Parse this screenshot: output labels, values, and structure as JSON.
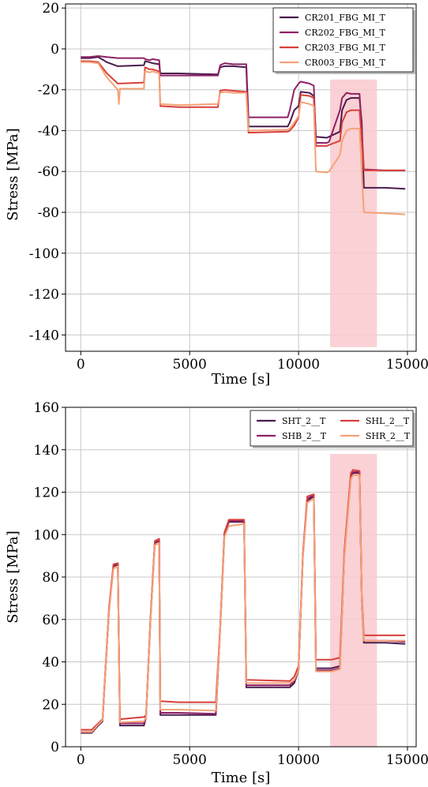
{
  "colors": {
    "dark_purple": "#4b1b4d",
    "magenta": "#8e2167",
    "red": "#d7403b",
    "salmon": "#f5a277",
    "highlight": "#f9c9cc"
  },
  "chart_data": [
    {
      "type": "line",
      "xlabel": "Time [s]",
      "ylabel": "Stress [MPa]",
      "xlim": [
        -700,
        15400
      ],
      "ylim": [
        -148,
        22
      ],
      "xticks": [
        0,
        5000,
        10000,
        15000
      ],
      "yticks": [
        20,
        0,
        -20,
        -40,
        -60,
        -80,
        -100,
        -120,
        -140
      ],
      "grid": true,
      "legend": "top-right",
      "legend_columns": 1,
      "highlight": {
        "x": [
          11450,
          13600
        ],
        "y": [
          -146,
          -15
        ]
      },
      "series": [
        {
          "name": "CR201_FBG_MI_T",
          "color": "#4b1b4d",
          "x": [
            0,
            400,
            800,
            1200,
            1700,
            2900,
            2950,
            3150,
            3300,
            3600,
            3650,
            4500,
            6300,
            6400,
            6600,
            7000,
            7600,
            7700,
            9500,
            9600,
            9800,
            10000,
            10100,
            10500,
            10700,
            10800,
            11300,
            11400,
            11900,
            12000,
            12200,
            12400,
            12800,
            12900,
            13000,
            14000,
            14900
          ],
          "y": [
            -4.5,
            -4.5,
            -4,
            -6.5,
            -8.5,
            -8,
            -6,
            -6.5,
            -7,
            -7.5,
            -12,
            -12,
            -12.5,
            -9,
            -8.5,
            -8.5,
            -9,
            -38,
            -38,
            -36,
            -30,
            -28,
            -21,
            -21.5,
            -23,
            -43,
            -43.5,
            -43,
            -40.5,
            -30,
            -25,
            -24,
            -24,
            -36,
            -68,
            -68,
            -68.5
          ]
        },
        {
          "name": "CR202_FBG_MI_T",
          "color": "#8e2167",
          "x": [
            0,
            400,
            800,
            1200,
            1700,
            2900,
            2950,
            3150,
            3300,
            3600,
            3650,
            4500,
            6300,
            6400,
            6600,
            7000,
            7600,
            7700,
            9500,
            9600,
            9800,
            10000,
            10100,
            10500,
            10700,
            10800,
            11300,
            11400,
            11900,
            12000,
            12200,
            12400,
            12800,
            12900,
            13000,
            14000,
            14900
          ],
          "y": [
            -4,
            -4,
            -3.5,
            -4,
            -4.5,
            -4.5,
            -5,
            -5.5,
            -5,
            -5.5,
            -13,
            -13,
            -13,
            -8,
            -7,
            -7.5,
            -7.5,
            -33.5,
            -33.5,
            -30,
            -20,
            -17,
            -16,
            -17,
            -18,
            -46,
            -46,
            -45.5,
            -30,
            -24,
            -21.5,
            -22,
            -22,
            -40,
            -59,
            -59.5,
            -59.5
          ]
        },
        {
          "name": "CR203_FBG_MI_T",
          "color": "#d7403b",
          "x": [
            0,
            400,
            800,
            1200,
            1700,
            2900,
            2950,
            3150,
            3300,
            3600,
            3650,
            4500,
            6300,
            6400,
            6600,
            7000,
            7600,
            7700,
            9500,
            9600,
            9800,
            10000,
            10100,
            10500,
            10700,
            10800,
            11300,
            11400,
            11900,
            12000,
            12200,
            12400,
            12800,
            12900,
            13000,
            14000,
            14900
          ],
          "y": [
            -6,
            -6,
            -6.5,
            -12,
            -17,
            -16.5,
            -9,
            -10,
            -10,
            -11,
            -28,
            -28.5,
            -28.5,
            -20.5,
            -20,
            -20.5,
            -21,
            -41,
            -40.5,
            -40,
            -37.5,
            -33.5,
            -22.5,
            -23,
            -24,
            -47.5,
            -47.5,
            -47,
            -45,
            -36,
            -31,
            -30,
            -30,
            -45,
            -59.5,
            -59.5,
            -59.5
          ]
        },
        {
          "name": "CR003_FBG_MI_T",
          "color": "#f5a277",
          "x": [
            0,
            400,
            800,
            1200,
            1700,
            1750,
            1800,
            2900,
            2950,
            3150,
            3300,
            3600,
            3650,
            4500,
            6300,
            6400,
            6600,
            7000,
            7600,
            7700,
            9500,
            9600,
            9800,
            10000,
            10100,
            10500,
            10700,
            10800,
            11300,
            11400,
            11900,
            12000,
            12200,
            12400,
            12800,
            12900,
            13000,
            14000,
            14900
          ],
          "y": [
            -6.5,
            -6.5,
            -7,
            -14,
            -20,
            -27,
            -19.5,
            -19.5,
            -11,
            -11.5,
            -11,
            -12,
            -27,
            -27.5,
            -27,
            -21.5,
            -21,
            -21.5,
            -21.5,
            -40,
            -39.5,
            -39,
            -36,
            -33,
            -26,
            -27,
            -28,
            -60,
            -60.5,
            -60,
            -52,
            -45,
            -40,
            -39,
            -39,
            -60,
            -80,
            -80.5,
            -81
          ]
        }
      ]
    },
    {
      "type": "line",
      "xlabel": "Time [s]",
      "ylabel": "Stress [MPa]",
      "xlim": [
        -700,
        15400
      ],
      "ylim": [
        0,
        160
      ],
      "xticks": [
        0,
        5000,
        10000,
        15000
      ],
      "yticks": [
        0,
        20,
        40,
        60,
        80,
        100,
        120,
        140,
        160
      ],
      "grid": true,
      "legend": "top-right",
      "legend_columns": 2,
      "highlight": {
        "x": [
          11450,
          13600
        ],
        "y": [
          0,
          138
        ]
      },
      "series": [
        {
          "name": "SHT_2__T",
          "color": "#4b1b4d",
          "x": [
            0,
            500,
            800,
            1000,
            1100,
            1300,
            1500,
            1700,
            1800,
            2900,
            3000,
            3200,
            3400,
            3600,
            3650,
            4500,
            6200,
            6400,
            6600,
            6800,
            7500,
            7600,
            9600,
            9800,
            10000,
            10200,
            10400,
            10700,
            10800,
            11500,
            11900,
            12100,
            12400,
            12500,
            12800,
            12900,
            13000,
            14000,
            14900
          ],
          "y": [
            6.5,
            6.5,
            10,
            12,
            30,
            65,
            85,
            86,
            10,
            10,
            14,
            60,
            96,
            97,
            15,
            15,
            15,
            55,
            100,
            106,
            106,
            28,
            28,
            30,
            36,
            90,
            116,
            118,
            37,
            37,
            38,
            90,
            127,
            129,
            129,
            70,
            49,
            49,
            48.5
          ]
        },
        {
          "name": "SHB_2__T",
          "color": "#8e2167",
          "x": [
            0,
            500,
            800,
            1000,
            1100,
            1300,
            1500,
            1700,
            1800,
            2900,
            3000,
            3200,
            3400,
            3600,
            3650,
            4500,
            6200,
            6400,
            6600,
            6800,
            7500,
            7600,
            9600,
            9800,
            10000,
            10200,
            10400,
            10700,
            10800,
            11500,
            11900,
            12100,
            12400,
            12500,
            12800,
            12900,
            13000,
            14000,
            14900
          ],
          "y": [
            7,
            7,
            10.5,
            12.5,
            30,
            65,
            85.5,
            86.5,
            11,
            11,
            14.5,
            60,
            96.5,
            97,
            16,
            16,
            15.5,
            55,
            101,
            106.5,
            106.5,
            29,
            29,
            31,
            36.5,
            90,
            117,
            118.5,
            36,
            36,
            37,
            90,
            128,
            129.5,
            129.5,
            70,
            50,
            50,
            49.5
          ]
        },
        {
          "name": "SHL_2__T",
          "color": "#d7403b",
          "x": [
            0,
            500,
            800,
            1000,
            1100,
            1300,
            1500,
            1700,
            1800,
            2900,
            3000,
            3200,
            3400,
            3600,
            3650,
            4500,
            6200,
            6400,
            6600,
            6800,
            7500,
            7600,
            9600,
            9800,
            10000,
            10200,
            10400,
            10700,
            10800,
            11500,
            11900,
            12100,
            12400,
            12500,
            12800,
            12900,
            13000,
            14000,
            14900
          ],
          "y": [
            8,
            8,
            11,
            13,
            31,
            66,
            86,
            86.5,
            13,
            14,
            15,
            61,
            97,
            98,
            21.5,
            21,
            21,
            56,
            101,
            107,
            107,
            31.5,
            31,
            33,
            38,
            91,
            118,
            119,
            41,
            41,
            42,
            92,
            129,
            130.5,
            130,
            72,
            52.5,
            52.5,
            52.5
          ]
        },
        {
          "name": "SHR_2__T",
          "color": "#f5a277",
          "x": [
            0,
            500,
            800,
            1000,
            1100,
            1300,
            1500,
            1700,
            1800,
            2900,
            3000,
            3200,
            3400,
            3600,
            3650,
            4500,
            6200,
            6400,
            6600,
            6800,
            7500,
            7600,
            9600,
            9800,
            10000,
            10200,
            10400,
            10700,
            10800,
            11500,
            11900,
            12100,
            12400,
            12500,
            12800,
            12900,
            13000,
            14000,
            14900
          ],
          "y": [
            7,
            7,
            10.5,
            12.5,
            30,
            64,
            84,
            85,
            11.5,
            12,
            14,
            59,
            95,
            96,
            17.5,
            17.5,
            17,
            54,
            99,
            104,
            105,
            30,
            30,
            31.5,
            36,
            89,
            115,
            117,
            35.5,
            35.5,
            36.5,
            89,
            126,
            128,
            128,
            70,
            50,
            50,
            50
          ]
        }
      ]
    }
  ]
}
